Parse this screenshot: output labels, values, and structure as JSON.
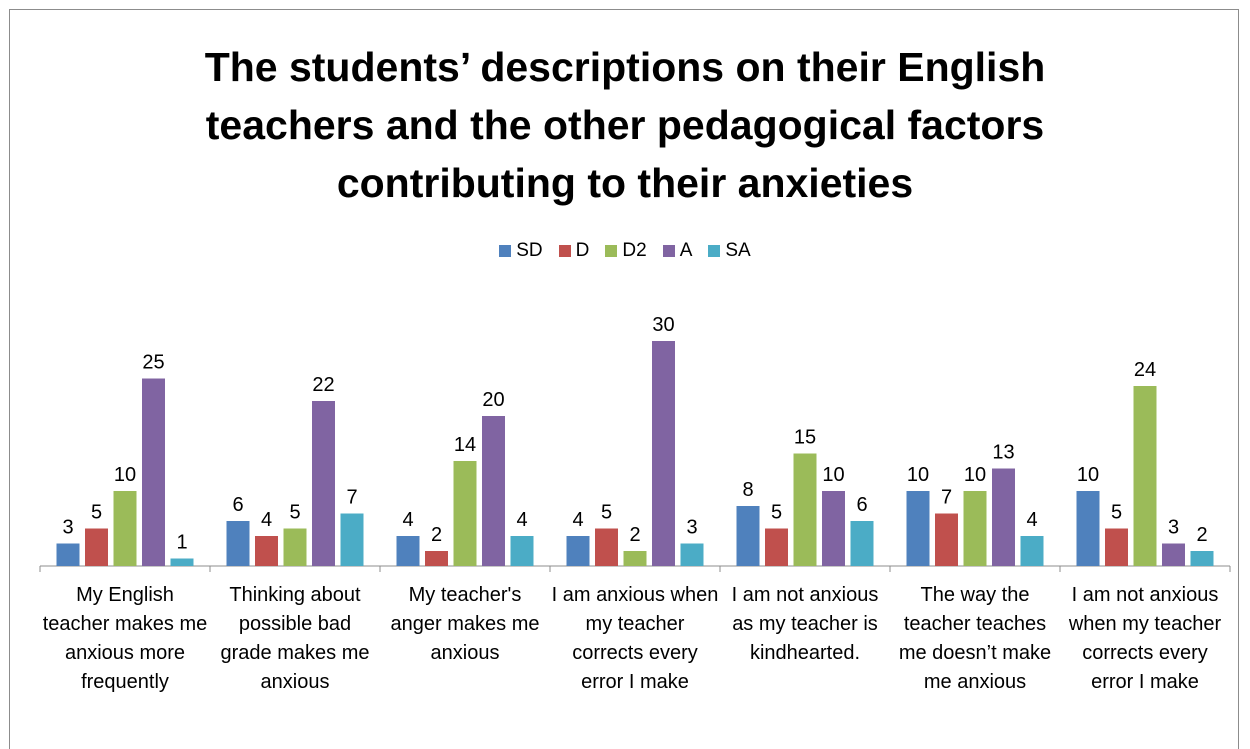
{
  "chart_data": {
    "type": "bar",
    "title": "The students’ descriptions on their English teachers and the other pedagogical factors contributing to their anxieties",
    "categories": [
      "My English teacher makes me anxious more frequently",
      "Thinking about possible bad grade makes me anxious",
      "My teacher's anger makes me anxious",
      "I am anxious when my teacher corrects every error I make",
      "I am not anxious as my teacher is kindhearted.",
      "The way the teacher teaches me doesn’t make me anxious",
      "I am not anxious when my teacher corrects every error I make"
    ],
    "series": [
      {
        "name": "SD",
        "color": "#4f81bd",
        "values": [
          3,
          6,
          4,
          4,
          8,
          10,
          10
        ]
      },
      {
        "name": "D",
        "color": "#c0504d",
        "values": [
          5,
          4,
          2,
          5,
          5,
          7,
          5
        ]
      },
      {
        "name": "D2",
        "color": "#9bbb59",
        "values": [
          10,
          5,
          14,
          2,
          15,
          10,
          24
        ]
      },
      {
        "name": "A",
        "color": "#8064a2",
        "values": [
          25,
          22,
          20,
          30,
          10,
          13,
          3
        ]
      },
      {
        "name": "SA",
        "color": "#4bacc6",
        "values": [
          1,
          7,
          4,
          3,
          6,
          4,
          2
        ]
      }
    ],
    "ylim": [
      0,
      35
    ],
    "legend": "top"
  }
}
